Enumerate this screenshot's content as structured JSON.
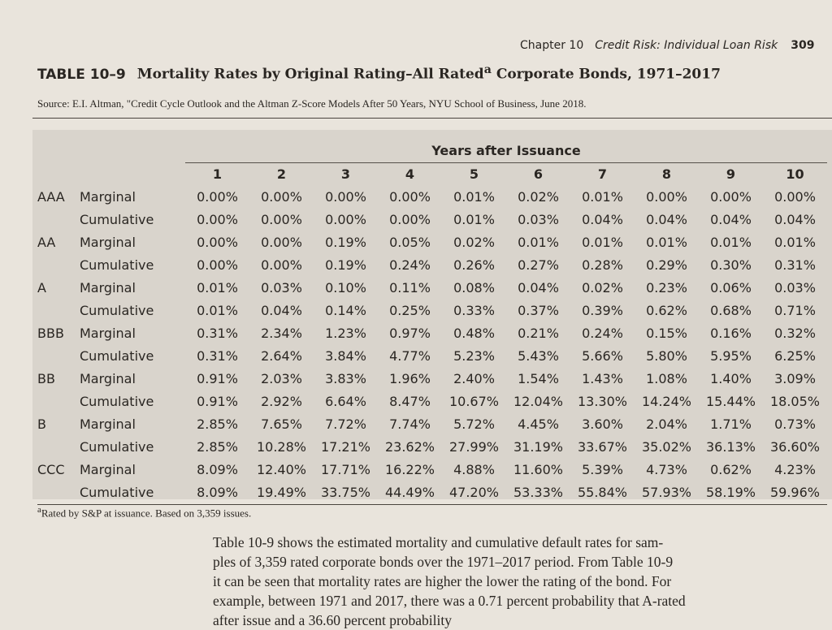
{
  "header": {
    "chapter": "Chapter 10",
    "section": "Credit Risk: Individual Loan Risk",
    "page": "309"
  },
  "table_label": "TABLE 10–9",
  "title": "Mortality Rates by Original Rating–All Rated",
  "title_note": "a",
  "title_end": "Corporate Bonds, 1971–2017",
  "source_label": "Source:",
  "source": "E.I. Altman, \"Credit Cycle Outlook and the Altman Z-Score Models After 50 Years, NYU School of Business, June 2018.",
  "table": {
    "column_group": "Years after Issuance",
    "columns": [
      "1",
      "2",
      "3",
      "4",
      "5",
      "6",
      "7",
      "8",
      "9",
      "10"
    ],
    "groups": [
      {
        "rating": "AAA",
        "rows": [
          {
            "type": "Marginal",
            "values": [
              "0.00%",
              "0.00%",
              "0.00%",
              "0.00%",
              "0.01%",
              "0.02%",
              "0.01%",
              "0.00%",
              "0.00%",
              "0.00%"
            ]
          },
          {
            "type": "Cumulative",
            "values": [
              "0.00%",
              "0.00%",
              "0.00%",
              "0.00%",
              "0.01%",
              "0.03%",
              "0.04%",
              "0.04%",
              "0.04%",
              "0.04%"
            ]
          }
        ]
      },
      {
        "rating": "AA",
        "rows": [
          {
            "type": "Marginal",
            "values": [
              "0.00%",
              "0.00%",
              "0.19%",
              "0.05%",
              "0.02%",
              "0.01%",
              "0.01%",
              "0.01%",
              "0.01%",
              "0.01%"
            ]
          },
          {
            "type": "Cumulative",
            "values": [
              "0.00%",
              "0.00%",
              "0.19%",
              "0.24%",
              "0.26%",
              "0.27%",
              "0.28%",
              "0.29%",
              "0.30%",
              "0.31%"
            ]
          }
        ]
      },
      {
        "rating": "A",
        "rows": [
          {
            "type": "Marginal",
            "values": [
              "0.01%",
              "0.03%",
              "0.10%",
              "0.11%",
              "0.08%",
              "0.04%",
              "0.02%",
              "0.23%",
              "0.06%",
              "0.03%"
            ]
          },
          {
            "type": "Cumulative",
            "values": [
              "0.01%",
              "0.04%",
              "0.14%",
              "0.25%",
              "0.33%",
              "0.37%",
              "0.39%",
              "0.62%",
              "0.68%",
              "0.71%"
            ]
          }
        ]
      },
      {
        "rating": "BBB",
        "rows": [
          {
            "type": "Marginal",
            "values": [
              "0.31%",
              "2.34%",
              "1.23%",
              "0.97%",
              "0.48%",
              "0.21%",
              "0.24%",
              "0.15%",
              "0.16%",
              "0.32%"
            ]
          },
          {
            "type": "Cumulative",
            "values": [
              "0.31%",
              "2.64%",
              "3.84%",
              "4.77%",
              "5.23%",
              "5.43%",
              "5.66%",
              "5.80%",
              "5.95%",
              "6.25%"
            ]
          }
        ]
      },
      {
        "rating": "BB",
        "rows": [
          {
            "type": "Marginal",
            "values": [
              "0.91%",
              "2.03%",
              "3.83%",
              "1.96%",
              "2.40%",
              "1.54%",
              "1.43%",
              "1.08%",
              "1.40%",
              "3.09%"
            ]
          },
          {
            "type": "Cumulative",
            "values": [
              "0.91%",
              "2.92%",
              "6.64%",
              "8.47%",
              "10.67%",
              "12.04%",
              "13.30%",
              "14.24%",
              "15.44%",
              "18.05%"
            ]
          }
        ]
      },
      {
        "rating": "B",
        "rows": [
          {
            "type": "Marginal",
            "values": [
              "2.85%",
              "7.65%",
              "7.72%",
              "7.74%",
              "5.72%",
              "4.45%",
              "3.60%",
              "2.04%",
              "1.71%",
              "0.73%"
            ]
          },
          {
            "type": "Cumulative",
            "values": [
              "2.85%",
              "10.28%",
              "17.21%",
              "23.62%",
              "27.99%",
              "31.19%",
              "33.67%",
              "35.02%",
              "36.13%",
              "36.60%"
            ]
          }
        ]
      },
      {
        "rating": "CCC",
        "rows": [
          {
            "type": "Marginal",
            "values": [
              "8.09%",
              "12.40%",
              "17.71%",
              "16.22%",
              "4.88%",
              "11.60%",
              "5.39%",
              "4.73%",
              "0.62%",
              "4.23%"
            ]
          },
          {
            "type": "Cumulative",
            "values": [
              "8.09%",
              "19.49%",
              "33.75%",
              "44.49%",
              "47.20%",
              "53.33%",
              "55.84%",
              "57.93%",
              "58.19%",
              "59.96%"
            ]
          }
        ]
      }
    ]
  },
  "footnote_mark": "a",
  "footnote": "Rated by S&P at issuance. Based on 3,359 issues.",
  "body": [
    "Table 10-9 shows the estimated mortality and cumulative default rates for sam-",
    "ples of 3,359 rated corporate bonds over the 1971–2017 period. From Table 10-9",
    "it can be seen that mortality rates are higher the lower the rating of the bond. For",
    "example, between 1971 and 2017, there was a 0.71 percent probability that A-rated",
    "after issue and a 36.60 percent probability"
  ]
}
